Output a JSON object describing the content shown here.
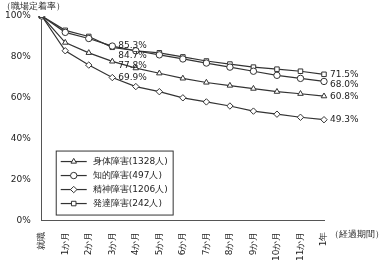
{
  "chart_data": {
    "type": "line",
    "y_label": "（職場定着率）",
    "x_label": "（経過期間）",
    "categories": [
      "就職",
      "1か月",
      "2か月",
      "3か月",
      "4か月",
      "5か月",
      "6か月",
      "7か月",
      "8か月",
      "9か月",
      "10か月",
      "11か月",
      "1年"
    ],
    "series": [
      {
        "name": "身体障害(1328人)",
        "color": "#333333",
        "marker": "triangle",
        "values": [
          100,
          87,
          82,
          77.8,
          74.5,
          72,
          69.5,
          67.5,
          66,
          64.5,
          63,
          62,
          60.8
        ],
        "value_labels": [
          null,
          null,
          null,
          "77.8%",
          null,
          null,
          null,
          null,
          null,
          null,
          null,
          null,
          "60.8%"
        ]
      },
      {
        "name": "知的障害(497人)",
        "color": "#333333",
        "marker": "circle",
        "values": [
          100,
          92,
          89,
          85.3,
          83,
          81,
          79,
          77,
          75,
          73,
          71,
          69.5,
          68.0
        ],
        "value_labels": [
          null,
          null,
          null,
          "85.3%",
          null,
          null,
          null,
          null,
          null,
          null,
          null,
          null,
          "68.0%"
        ]
      },
      {
        "name": "精神障害(1206人)",
        "color": "#333333",
        "marker": "diamond",
        "values": [
          100,
          83,
          76,
          69.9,
          65.5,
          63,
          60,
          58,
          56,
          53.5,
          52,
          50.5,
          49.3
        ],
        "value_labels": [
          null,
          null,
          null,
          "69.9%",
          null,
          null,
          null,
          null,
          null,
          null,
          null,
          null,
          "49.3%"
        ]
      },
      {
        "name": "発達障害(242人)",
        "color": "#333333",
        "marker": "square",
        "values": [
          100,
          93,
          90,
          84.7,
          83,
          82,
          80,
          78,
          76.5,
          75,
          74,
          73,
          71.5
        ],
        "value_labels": [
          null,
          null,
          null,
          "84.7%",
          null,
          null,
          null,
          null,
          null,
          null,
          null,
          null,
          "71.5%"
        ]
      }
    ],
    "ylim": [
      0,
      100
    ],
    "yticks": [
      {
        "value": 0,
        "label": "0%"
      },
      {
        "value": 20,
        "label": "20%"
      },
      {
        "value": 40,
        "label": "40%"
      },
      {
        "value": 60,
        "label": "60%"
      },
      {
        "value": 80,
        "label": "80%"
      },
      {
        "value": 100,
        "label": "100%"
      }
    ],
    "grid": false,
    "legend": "lower left"
  }
}
